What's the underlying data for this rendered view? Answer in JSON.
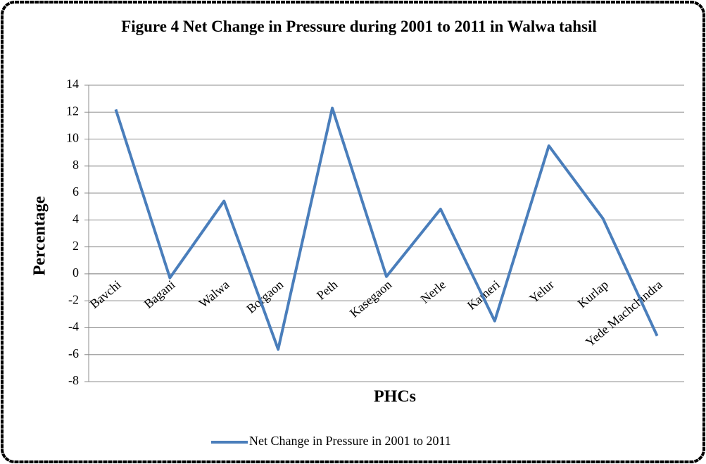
{
  "chart_data": {
    "type": "line",
    "title": "Figure 4 Net Change in Pressure during 2001 to 2011 in Walwa tahsil",
    "x_label": "PHCs",
    "y_label": "Percentage",
    "categories": [
      "Bavchi",
      "Bagani",
      "Walwa",
      "Borgaon",
      "Peth",
      "Kasegaon",
      "Nerle",
      "Kameri",
      "Yelur",
      "Kurlap",
      "Yede Machchindra"
    ],
    "series": [
      {
        "name": "Net Change in Pressure in 2001 to 2011",
        "color": "#4a7ebb",
        "values": [
          12.2,
          -0.3,
          5.4,
          -5.6,
          12.3,
          -0.2,
          4.8,
          -3.5,
          9.5,
          4.1,
          -4.6
        ]
      }
    ],
    "ylim": [
      -8,
      14
    ],
    "yticks": [
      -8,
      -6,
      -4,
      -2,
      0,
      2,
      4,
      6,
      8,
      10,
      12,
      14
    ],
    "grid": true,
    "legend": "bottom"
  }
}
